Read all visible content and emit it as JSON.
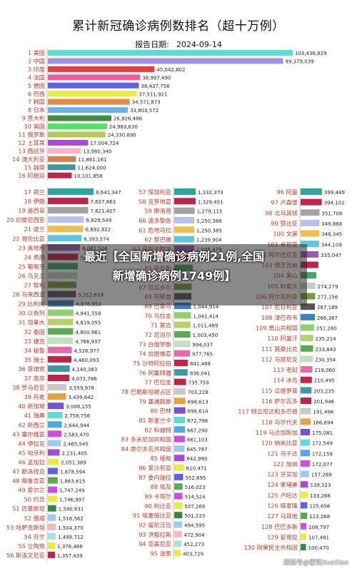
{
  "title": "累计新冠确诊病例数排名（超十万例）",
  "report_label": "报告日期:",
  "report_date": "2024-09-14",
  "overlay_line1": "最近【全国新增确诊病例21例,全国",
  "overlay_line2": "新增确诊病例1749例】",
  "watermark": "搜狐号@雷锐XueXiao",
  "chart_data": [
    {
      "type": "bar",
      "orientation": "horizontal",
      "title": "累计新冠确诊病例数排名（超十万例）",
      "categories": [
        "1 美国",
        "2 中国",
        "3 印度",
        "4 法国",
        "5 德国",
        "6 巴西",
        "7 韩国",
        "8 日本",
        "9 意大利",
        "10 英国",
        "11 俄罗斯",
        "12 土耳其",
        "13 西班牙",
        "14 澳大利亚",
        "15 越南",
        "16 阿根廷"
      ],
      "values": [
        103436829,
        99379039,
        45042802,
        38997490,
        38437756,
        37511921,
        34571873,
        33803572,
        26826486,
        24983630,
        24330890,
        17004724,
        13980340,
        11861161,
        11624000,
        10101858
      ],
      "colors": [
        "#5ddcd6",
        "#a390e4",
        "#ee3c3c",
        "#f05aa0",
        "#5e62e6",
        "#e9ed3c",
        "#e68c3e",
        "#6ab0f0",
        "#3d8f3d",
        "#4fe55f",
        "#b5c94b",
        "#a74ad4",
        "#f6b5c8",
        "#d6834a",
        "#3a99a2",
        "#c02448"
      ]
    },
    {
      "type": "bar",
      "orientation": "horizontal",
      "categories": [
        "17 荷兰",
        "18 伊朗",
        "19 墨西哥",
        "20 印度尼西亚",
        "21 波兰",
        "22 哥伦比亚",
        "23 奥地利",
        "24 希腊",
        "25 葡萄牙",
        "26 乌克兰",
        "27 智利",
        "28 马来西亚",
        "29 比利时",
        "30 以色列",
        "31 加拿大",
        "32 泰国",
        "33 捷克",
        "34 秘鲁",
        "35 瑞士",
        "36 菲律宾",
        "37 南非",
        "38 罗马尼亚",
        "39 丹麦",
        "40 新加坡",
        "41 瑞典",
        "42 新西兰",
        "43 塞尔维亚",
        "44 伊拉克",
        "45 匈牙利",
        "46 孟加拉",
        "47 斯洛伐克",
        "48 格鲁吉亚",
        "49 爱尔兰",
        "50 约旦",
        "51 巴基斯坦",
        "52 挪威",
        "53 哈萨克斯坦",
        "54 芬兰",
        "55 立陶宛",
        "56 斯洛文尼亚"
      ],
      "values": [
        8641347,
        7627863,
        7621407,
        6829549,
        6692822,
        6393574,
        6082508,
        5693466,
        5660000,
        5560000,
        5390000,
        5312619,
        4876953,
        4841558,
        4819055,
        4800961,
        4766937,
        4526977,
        4460093,
        4140383,
        4072786,
        3559978,
        3439642,
        3006155,
        2758756,
        2644944,
        2583470,
        2465545,
        2231405,
        2051389,
        1878594,
        1863615,
        1747249,
        1746997,
        1580631,
        1516562,
        1504370,
        1499712,
        1376486,
        1357439
      ],
      "value_labels": [
        "8,641,347",
        "7,627,863",
        "7,621,407",
        "6,829,549",
        "6,692,822",
        "6,393,574",
        "6,082,508",
        "5,693,466",
        "",
        "",
        "",
        "5,312,619",
        "4,876,953",
        "4,841,558",
        "4,819,055",
        "4,800,961",
        "4,766,937",
        "4,526,977",
        "4,460,093",
        "4,140,383",
        "4,072,786",
        "3,559,978",
        "3,439,642",
        "3,006,155",
        "2,758,756",
        "2,644,944",
        "2,583,470",
        "2,465,545",
        "2,231,405",
        "2,051,389",
        "1,878,594",
        "1,863,615",
        "1,747,249",
        "1,746,997",
        "1,580,631",
        "1,516,562",
        "1,504,370",
        "1,499,712",
        "1,376,486",
        "1,357,439"
      ],
      "colors": [
        "#2ea6a0",
        "#c02448",
        "#a3a3a3",
        "#b9c1f0",
        "#f0be4a",
        "#5bc7e6",
        "#9b59b6",
        "#c02448",
        "#3da56a",
        "#c9c9c9",
        "#7a9b3d",
        "#555555",
        "#3a7fc0",
        "#8fd16a",
        "#b8d06a",
        "#5aaa50",
        "#bfe2b8",
        "#e66aa8",
        "#c02448",
        "#3a99a2",
        "#c02448",
        "#c9c9c9",
        "#e6a23e",
        "#7b4fd4",
        "#5ddcd6",
        "#4fa8e6",
        "#d04ae6",
        "#9ec9f0",
        "#a74ad4",
        "#e9ed3c",
        "#5e62e6",
        "#5aaa50",
        "#d04ae6",
        "#e9ed3c",
        "#2e8c3a",
        "#9ec9f0",
        "#f6b5c8",
        "#a9e0e0",
        "#e9ed3c",
        "#c02448"
      ]
    },
    {
      "type": "bar",
      "orientation": "horizontal",
      "categories": [
        "57 保加利亚",
        "58 克罗地亚",
        "59 摩洛哥",
        "60 波多黎各",
        "61 危地马拉",
        "62 黎巴嫩",
        "63 哥斯达黎加",
        "64 玻利维亚",
        "65 突尼斯",
        "66 古巴",
        "67 厄瓜多尔",
        "68 阿联酋",
        "69 巴拿马",
        "70 乌拉圭",
        "71 蒙古",
        "72 尼泊尔",
        "73 白俄罗斯",
        "74 拉脱维亚",
        "75 沙特阿拉伯",
        "76 阿塞拜疆",
        "77 巴拉圭",
        "78 巴勒斯坦被占区",
        "79 塞浦路斯",
        "80 巴林",
        "81 斯里兰卡",
        "82 科威特",
        "83 多米尼加共和国",
        "84 摩尔多瓦共和国",
        "85 缅甸",
        "86 爱沙尼亚",
        "87 委内瑞拉",
        "88 埃及",
        "89 卡塔尔",
        "90 利比亚",
        "91 埃塞俄比亚",
        "92 留尼汪岛",
        "93 洪都拉斯",
        "94 亚美尼亚",
        "95 波黑"
      ],
      "values": [
        1332373,
        1329451,
        1279115,
        1250386,
        1250385,
        1239904,
        1235479,
        1212149,
        1153361,
        1113662,
        1081247,
        1067030,
        1044914,
        1041414,
        1011489,
        1003450,
        994037,
        977765,
        841469,
        836041,
        735759,
        703228,
        698613,
        696614,
        672798,
        667290,
        661103,
        645787,
        642990,
        610471,
        552695,
        516023,
        514524,
        507269,
        501223,
        494595,
        472904,
        452273,
        403729
      ],
      "value_labels": [
        "1,332,373",
        "1,329,451",
        "1,279,115",
        "1,250,386",
        "1,250,385",
        "1,239,904",
        "1,235,479",
        "1,212,149",
        "",
        "",
        "",
        "",
        "1,044,914",
        "1,041,414",
        "1,011,489",
        "1,003,450",
        "994,037",
        "977,765",
        "841,469",
        "836,041",
        "735,759",
        "703,228",
        "698,613",
        "696,614",
        "672,798",
        "667,290",
        "661,103",
        "645,787",
        "642,990",
        "610,471",
        "552,695",
        "516,023",
        "514,524",
        "507,269",
        "501,223",
        "494,595",
        "472,904",
        "452,273",
        "403,729"
      ],
      "colors": [
        "#2ea6a0",
        "#c02448",
        "#a3a3a3",
        "#b9c1f0",
        "#f0be4a",
        "#5bc7e6",
        "#9b59b6",
        "#c02448",
        "#3da56a",
        "#c9c9c9",
        "#7a9b3d",
        "#555555",
        "#3a7fc0",
        "#8fd16a",
        "#b8d06a",
        "#5aaa50",
        "#bfe2b8",
        "#e66aa8",
        "#c02448",
        "#3a99a2",
        "#c02448",
        "#c9c9c9",
        "#e6a23e",
        "#7b4fd4",
        "#5ddcd6",
        "#4fa8e6",
        "#d04ae6",
        "#9ec9f0",
        "#a74ad4",
        "#e9ed3c",
        "#5e62e6",
        "#5aaa50",
        "#d04ae6",
        "#e9ed3c",
        "#2e8c3a",
        "#9ec9f0",
        "#f6b5c8",
        "#a9e0e0",
        "#e9ed3c"
      ]
    },
    {
      "type": "bar",
      "orientation": "horizontal",
      "categories": [
        "96 阿曼",
        "97 卢森堡",
        "98 北马其顿",
        "99 赞比亚",
        "100 文莱",
        "101 肯尼亚",
        "102 阿尔巴尼亚",
        "103 博茨瓦纳",
        "104 黑山",
        "105 科索沃",
        "106 阿尔及利亚",
        "107 尼日利亚",
        "108 津巴布韦",
        "109 黑山共和国",
        "110 阿富汗",
        "111 莫桑比克",
        "112 马提尼克",
        "113 老挝",
        "114 冰岛",
        "115 瓜德罗普",
        "116 萨尔瓦多",
        "117 特立尼达和多巴哥",
        "118 马尔代夫",
        "119 马达加斯加",
        "120 纳米比亚",
        "121 乌干达",
        "122 加纳",
        "123 牙买加",
        "124 柬埔寨",
        "125 卢旺达",
        "126 喀麦隆",
        "127 马耳他",
        "128 巴巴多斯",
        "129 安哥拉",
        "130 刚果民主共和国"
      ],
      "values": [
        399449,
        394102,
        351708,
        349868,
        348345,
        344109,
        335047,
        330696,
        291806,
        274279,
        272156,
        267189,
        266387,
        251280,
        235214,
        233843,
        230354,
        219060,
        210495,
        203235,
        201946,
        191496,
        186694,
        175081,
        172549,
        172159,
        172077,
        157269,
        139323,
        133266,
        125656,
        123268,
        108797,
        107481,
        100470
      ],
      "value_labels": [
        "399,449",
        "394,102",
        "351,708",
        "349,868",
        "348,345",
        "344,109",
        "335,047",
        "",
        "",
        "274,279",
        "272,156",
        "267,189",
        "266,387",
        "251,280",
        "235,214",
        "233,843",
        "230,354",
        "219,060",
        "210,495",
        "203,235",
        "201,946",
        "191,496",
        "186,694",
        "175,081",
        "172,549",
        "172,159",
        "172,077",
        "157,269",
        "139,323",
        "133,266",
        "125,656",
        "123,268",
        "108,797",
        "107,481",
        "100,470"
      ],
      "colors": [
        "#2ea6a0",
        "#c02448",
        "#a3a3a3",
        "#b9c1f0",
        "#f0be4a",
        "#5bc7e6",
        "#9b59b6",
        "#c02448",
        "#3da56a",
        "#c9c9c9",
        "#7a9b3d",
        "#555555",
        "#3a7fc0",
        "#8fd16a",
        "#b8d06a",
        "#5aaa50",
        "#bfe2b8",
        "#e66aa8",
        "#c02448",
        "#3a99a2",
        "#c02448",
        "#c9c9c9",
        "#e6a23e",
        "#7b4fd4",
        "#5ddcd6",
        "#4fa8e6",
        "#d04ae6",
        "#9ec9f0",
        "#a74ad4",
        "#e9ed3c",
        "#5e62e6",
        "#5aaa50",
        "#d04ae6",
        "#e9ed3c",
        "#2e8c3a"
      ]
    }
  ]
}
